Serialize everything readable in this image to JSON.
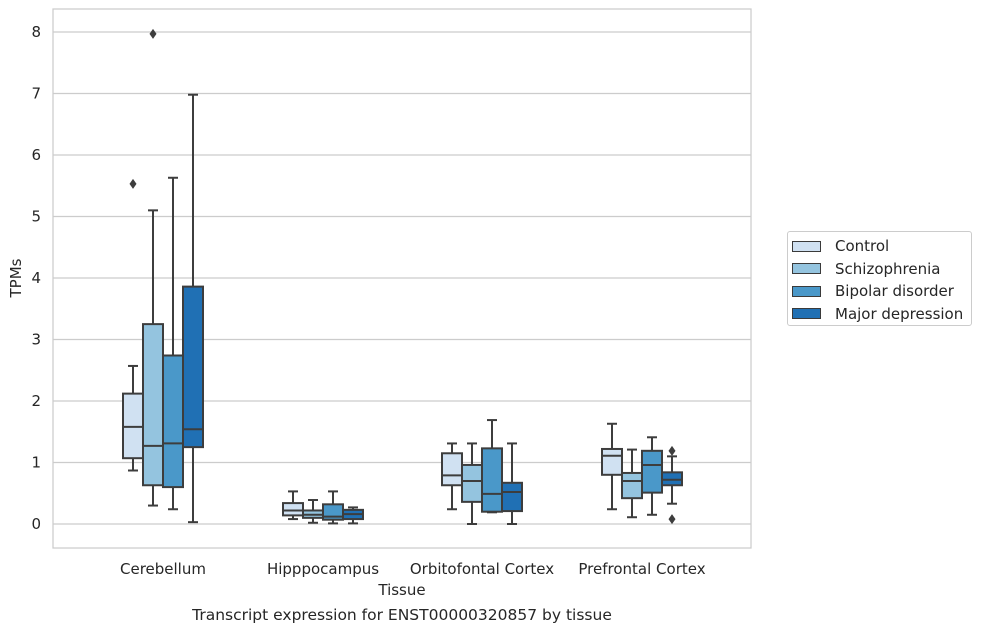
{
  "chart_data": {
    "type": "box",
    "title": "",
    "caption": "Transcript expression for ENST00000320857 by tissue",
    "xlabel": "Tissue",
    "ylabel": "TPMs",
    "ylim": [
      -0.4,
      8.4
    ],
    "yticks": [
      0,
      1,
      2,
      3,
      4,
      5,
      6,
      7,
      8
    ],
    "grid": true,
    "legend_position": "right",
    "categories": [
      "Cerebellum",
      "Hipppocampus",
      "Orbitofontal Cortex",
      "Prefrontal Cortex"
    ],
    "series": [
      {
        "name": "Control",
        "color": "#d0e1f2",
        "boxes": [
          {
            "whislo": 0.87,
            "q1": 1.07,
            "med": 1.58,
            "q3": 2.12,
            "whishi": 2.57,
            "fliers": [
              5.53
            ]
          },
          {
            "whislo": 0.08,
            "q1": 0.14,
            "med": 0.22,
            "q3": 0.34,
            "whishi": 0.53,
            "fliers": []
          },
          {
            "whislo": 0.24,
            "q1": 0.63,
            "med": 0.79,
            "q3": 1.15,
            "whishi": 1.31,
            "fliers": []
          },
          {
            "whislo": 0.24,
            "q1": 0.8,
            "med": 1.11,
            "q3": 1.22,
            "whishi": 1.63,
            "fliers": []
          }
        ]
      },
      {
        "name": "Schizophrenia",
        "color": "#94c4df",
        "boxes": [
          {
            "whislo": 0.3,
            "q1": 0.63,
            "med": 1.27,
            "q3": 3.25,
            "whishi": 5.1,
            "fliers": [
              7.97
            ]
          },
          {
            "whislo": 0.02,
            "q1": 0.1,
            "med": 0.15,
            "q3": 0.22,
            "whishi": 0.39,
            "fliers": []
          },
          {
            "whislo": 0.0,
            "q1": 0.36,
            "med": 0.7,
            "q3": 0.96,
            "whishi": 1.31,
            "fliers": []
          },
          {
            "whislo": 0.11,
            "q1": 0.42,
            "med": 0.7,
            "q3": 0.83,
            "whishi": 1.21,
            "fliers": []
          }
        ]
      },
      {
        "name": "Bipolar disorder",
        "color": "#4a98c9",
        "boxes": [
          {
            "whislo": 0.24,
            "q1": 0.6,
            "med": 1.31,
            "q3": 2.74,
            "whishi": 5.63,
            "fliers": []
          },
          {
            "whislo": 0.01,
            "q1": 0.07,
            "med": 0.12,
            "q3": 0.32,
            "whishi": 0.53,
            "fliers": []
          },
          {
            "whislo": 0.19,
            "q1": 0.2,
            "med": 0.49,
            "q3": 1.23,
            "whishi": 1.69,
            "fliers": []
          },
          {
            "whislo": 0.15,
            "q1": 0.51,
            "med": 0.96,
            "q3": 1.19,
            "whishi": 1.41,
            "fliers": []
          }
        ]
      },
      {
        "name": "Major depression",
        "color": "#2070b4",
        "boxes": [
          {
            "whislo": 0.03,
            "q1": 1.25,
            "med": 1.54,
            "q3": 3.86,
            "whishi": 6.98,
            "fliers": []
          },
          {
            "whislo": 0.01,
            "q1": 0.08,
            "med": 0.16,
            "q3": 0.23,
            "whishi": 0.27,
            "fliers": []
          },
          {
            "whislo": 0.0,
            "q1": 0.21,
            "med": 0.52,
            "q3": 0.67,
            "whishi": 1.31,
            "fliers": []
          },
          {
            "whislo": 0.33,
            "q1": 0.63,
            "med": 0.72,
            "q3": 0.84,
            "whishi": 1.1,
            "fliers": [
              1.19,
              0.08
            ]
          }
        ]
      }
    ]
  }
}
